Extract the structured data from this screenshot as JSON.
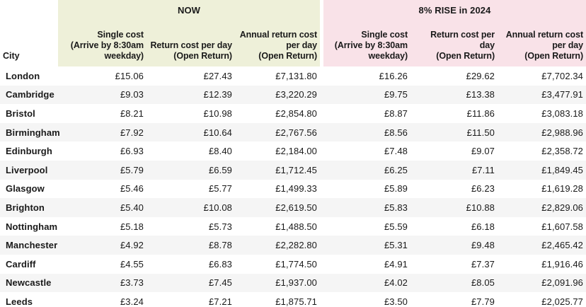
{
  "colors": {
    "now_bg": "#eef0d9",
    "rise_bg": "#f9e2e8",
    "stripe": "#f5f5f5",
    "text": "#1a1a1a"
  },
  "table": {
    "city_header": "City",
    "groups": [
      {
        "label": "NOW"
      },
      {
        "label": "8% RISE in 2024"
      }
    ],
    "columns": [
      "Single cost\n(Arrive by 8:30am\nweekday)",
      "Return cost per day\n(Open Return)",
      "Annual return cost\nper day\n(Open Return)"
    ],
    "rows": [
      {
        "city": "London",
        "now": [
          "£15.06",
          "£27.43",
          "£7,131.80"
        ],
        "rise": [
          "£16.26",
          "£29.62",
          "£7,702.34"
        ]
      },
      {
        "city": "Cambridge",
        "now": [
          "£9.03",
          "£12.39",
          "£3,220.29"
        ],
        "rise": [
          "£9.75",
          "£13.38",
          "£3,477.91"
        ]
      },
      {
        "city": "Bristol",
        "now": [
          "£8.21",
          "£10.98",
          "£2,854.80"
        ],
        "rise": [
          "£8.87",
          "£11.86",
          "£3,083.18"
        ]
      },
      {
        "city": "Birmingham",
        "now": [
          "£7.92",
          "£10.64",
          "£2,767.56"
        ],
        "rise": [
          "£8.56",
          "£11.50",
          "£2,988.96"
        ]
      },
      {
        "city": "Edinburgh",
        "now": [
          "£6.93",
          "£8.40",
          "£2,184.00"
        ],
        "rise": [
          "£7.48",
          "£9.07",
          "£2,358.72"
        ]
      },
      {
        "city": "Liverpool",
        "now": [
          "£5.79",
          "£6.59",
          "£1,712.45"
        ],
        "rise": [
          "£6.25",
          "£7.11",
          "£1,849.45"
        ]
      },
      {
        "city": "Glasgow",
        "now": [
          "£5.46",
          "£5.77",
          "£1,499.33"
        ],
        "rise": [
          "£5.89",
          "£6.23",
          "£1,619.28"
        ]
      },
      {
        "city": "Brighton",
        "now": [
          "£5.40",
          "£10.08",
          "£2,619.50"
        ],
        "rise": [
          "£5.83",
          "£10.88",
          "£2,829.06"
        ]
      },
      {
        "city": "Nottingham",
        "now": [
          "£5.18",
          "£5.73",
          "£1,488.50"
        ],
        "rise": [
          "£5.59",
          "£6.18",
          "£1,607.58"
        ]
      },
      {
        "city": "Manchester",
        "now": [
          "£4.92",
          "£8.78",
          "£2,282.80"
        ],
        "rise": [
          "£5.31",
          "£9.48",
          "£2,465.42"
        ]
      },
      {
        "city": "Cardiff",
        "now": [
          "£4.55",
          "£6.83",
          "£1,774.50"
        ],
        "rise": [
          "£4.91",
          "£7.37",
          "£1,916.46"
        ]
      },
      {
        "city": "Newcastle",
        "now": [
          "£3.73",
          "£7.45",
          "£1,937.00"
        ],
        "rise": [
          "£4.02",
          "£8.05",
          "£2,091.96"
        ]
      },
      {
        "city": "Leeds",
        "now": [
          "£3.24",
          "£7.21",
          "£1,875.71"
        ],
        "rise": [
          "£3.50",
          "£7.79",
          "£2,025.77"
        ]
      }
    ]
  },
  "chart_data": {
    "type": "table",
    "title": "",
    "row_header": "City",
    "column_groups": [
      "NOW",
      "8% RISE in 2024"
    ],
    "columns": [
      "NOW – Single cost (Arrive by 8:30am weekday)",
      "NOW – Return cost per day (Open Return)",
      "NOW – Annual return cost per day (Open Return)",
      "8% RISE in 2024 – Single cost (Arrive by 8:30am weekday)",
      "8% RISE in 2024 – Return cost per day (Open Return)",
      "8% RISE in 2024 – Annual return cost per day (Open Return)"
    ],
    "rows": [
      {
        "city": "London",
        "values": [
          15.06,
          27.43,
          7131.8,
          16.26,
          29.62,
          7702.34
        ]
      },
      {
        "city": "Cambridge",
        "values": [
          9.03,
          12.39,
          3220.29,
          9.75,
          13.38,
          3477.91
        ]
      },
      {
        "city": "Bristol",
        "values": [
          8.21,
          10.98,
          2854.8,
          8.87,
          11.86,
          3083.18
        ]
      },
      {
        "city": "Birmingham",
        "values": [
          7.92,
          10.64,
          2767.56,
          8.56,
          11.5,
          2988.96
        ]
      },
      {
        "city": "Edinburgh",
        "values": [
          6.93,
          8.4,
          2184.0,
          7.48,
          9.07,
          2358.72
        ]
      },
      {
        "city": "Liverpool",
        "values": [
          5.79,
          6.59,
          1712.45,
          6.25,
          7.11,
          1849.45
        ]
      },
      {
        "city": "Glasgow",
        "values": [
          5.46,
          5.77,
          1499.33,
          5.89,
          6.23,
          1619.28
        ]
      },
      {
        "city": "Brighton",
        "values": [
          5.4,
          10.08,
          2619.5,
          5.83,
          10.88,
          2829.06
        ]
      },
      {
        "city": "Nottingham",
        "values": [
          5.18,
          5.73,
          1488.5,
          5.59,
          6.18,
          1607.58
        ]
      },
      {
        "city": "Manchester",
        "values": [
          4.92,
          8.78,
          2282.8,
          5.31,
          9.48,
          2465.42
        ]
      },
      {
        "city": "Cardiff",
        "values": [
          4.55,
          6.83,
          1774.5,
          4.91,
          7.37,
          1916.46
        ]
      },
      {
        "city": "Newcastle",
        "values": [
          3.73,
          7.45,
          1937.0,
          4.02,
          8.05,
          2091.96
        ]
      },
      {
        "city": "Leeds",
        "values": [
          3.24,
          7.21,
          1875.71,
          3.5,
          7.79,
          2025.77
        ]
      }
    ],
    "currency": "GBP"
  }
}
